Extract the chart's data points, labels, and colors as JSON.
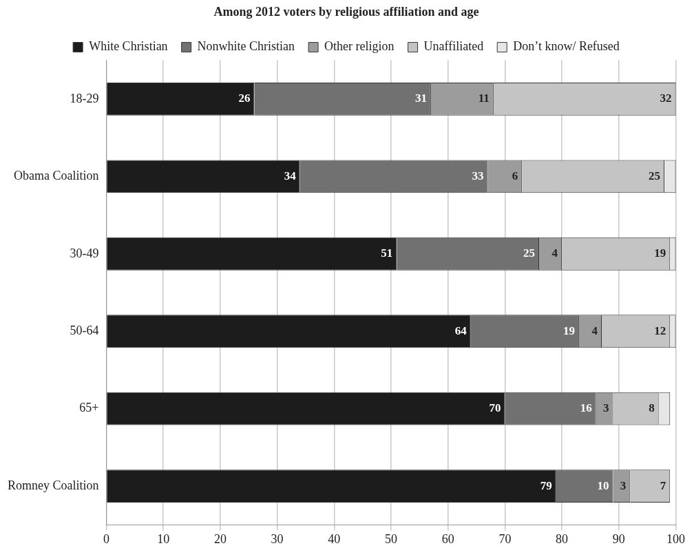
{
  "chart_data": {
    "type": "bar",
    "orientation": "horizontal",
    "stacked": true,
    "title": "Among 2012 voters by religious affiliation and age",
    "categories": [
      "18-29",
      "Obama Coalition",
      "30-49",
      "50-64",
      "65+",
      "Romney Coalition"
    ],
    "series": [
      {
        "name": "White Christian",
        "color": "#1c1c1c",
        "values": [
          26,
          34,
          51,
          64,
          70,
          79
        ],
        "value_labels": [
          "26",
          "34",
          "51",
          "64",
          "70",
          "79"
        ]
      },
      {
        "name": "Nonwhite Christian",
        "color": "#717171",
        "values": [
          31,
          33,
          25,
          19,
          16,
          10
        ],
        "value_labels": [
          "31",
          "33",
          "25",
          "19",
          "16",
          "10"
        ]
      },
      {
        "name": "Other religion",
        "color": "#9c9c9c",
        "values": [
          11,
          6,
          4,
          4,
          3,
          3
        ],
        "value_labels": [
          "11",
          "6",
          "4",
          "4",
          "3",
          "3"
        ]
      },
      {
        "name": "Unaffiliated",
        "color": "#c4c4c4",
        "values": [
          32,
          25,
          19,
          12,
          8,
          7
        ],
        "value_labels": [
          "32",
          "25",
          "19",
          "12",
          "8",
          "7"
        ]
      },
      {
        "name": "Don’t know/ Refused",
        "color": "#e6e6e6",
        "values": [
          null,
          2,
          1,
          1,
          2,
          null
        ],
        "value_labels": [
          null,
          null,
          null,
          null,
          null,
          null
        ]
      }
    ],
    "xlim": [
      0,
      100
    ],
    "xticks": [
      0,
      10,
      20,
      30,
      40,
      50,
      60,
      70,
      80,
      90,
      100
    ],
    "grid": "x",
    "legend": "top"
  }
}
